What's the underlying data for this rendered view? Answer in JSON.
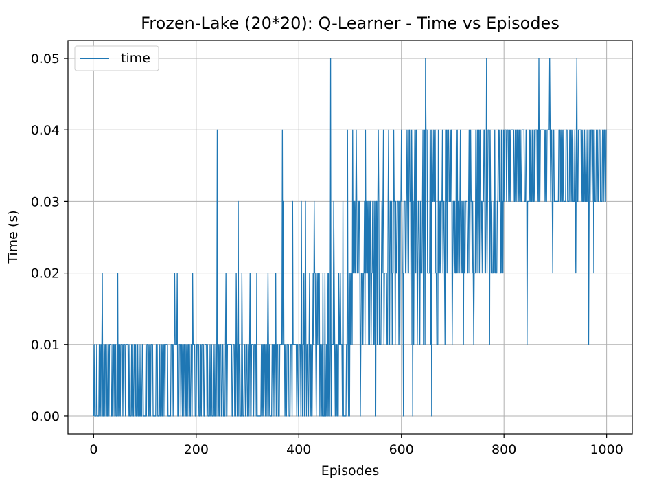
{
  "chart_data": {
    "type": "line",
    "title": "Frozen-Lake (20*20): Q-Learner - Time vs Episodes",
    "xlabel": "Episodes",
    "ylabel": "Time (s)",
    "xlim": [
      -50,
      1050
    ],
    "ylim": [
      -0.0025,
      0.0525
    ],
    "x_ticks": [
      0,
      200,
      400,
      600,
      800,
      1000
    ],
    "x_tick_labels": [
      "0",
      "200",
      "400",
      "600",
      "800",
      "1000"
    ],
    "y_ticks": [
      0.0,
      0.01,
      0.02,
      0.03,
      0.04,
      0.05
    ],
    "y_tick_labels": [
      "0.00",
      "0.01",
      "0.02",
      "0.03",
      "0.04",
      "0.05"
    ],
    "grid": true,
    "legend": {
      "position": "top-left",
      "entries": [
        "time"
      ]
    },
    "series": [
      {
        "name": "time",
        "color": "#1f77b4",
        "x_start": 0,
        "x_step": 1,
        "values_note_free": true,
        "segments": [
          {
            "from": 0,
            "to": 150,
            "low": 0.0,
            "high": 0.01,
            "p_high": 0.5,
            "spikes": [
              {
                "x": 17,
                "y": 0.02
              },
              {
                "x": 47,
                "y": 0.02
              }
            ]
          },
          {
            "from": 150,
            "to": 300,
            "low": 0.0,
            "high": 0.01,
            "p_high": 0.55,
            "spikes": [
              {
                "x": 158,
                "y": 0.02
              },
              {
                "x": 163,
                "y": 0.02
              },
              {
                "x": 193,
                "y": 0.02
              },
              {
                "x": 241,
                "y": 0.04
              },
              {
                "x": 258,
                "y": 0.02
              },
              {
                "x": 278,
                "y": 0.02
              },
              {
                "x": 282,
                "y": 0.03
              },
              {
                "x": 289,
                "y": 0.02
              }
            ]
          },
          {
            "from": 300,
            "to": 420,
            "low": 0.0,
            "high": 0.01,
            "p_high": 0.55,
            "spikes": [
              {
                "x": 305,
                "y": 0.02
              },
              {
                "x": 318,
                "y": 0.02
              },
              {
                "x": 340,
                "y": 0.02
              },
              {
                "x": 355,
                "y": 0.02
              },
              {
                "x": 368,
                "y": 0.04
              },
              {
                "x": 370,
                "y": 0.03
              },
              {
                "x": 388,
                "y": 0.03
              },
              {
                "x": 405,
                "y": 0.03
              },
              {
                "x": 410,
                "y": 0.02
              },
              {
                "x": 413,
                "y": 0.03
              }
            ]
          },
          {
            "from": 420,
            "to": 500,
            "low": 0.0,
            "high": 0.02,
            "p_high": 0.5,
            "spikes": [
              {
                "x": 430,
                "y": 0.03
              },
              {
                "x": 462,
                "y": 0.05
              },
              {
                "x": 468,
                "y": 0.03
              },
              {
                "x": 486,
                "y": 0.03
              },
              {
                "x": 495,
                "y": 0.04
              }
            ]
          },
          {
            "from": 500,
            "to": 600,
            "low": 0.01,
            "high": 0.03,
            "p_high": 0.5,
            "spikes": [
              {
                "x": 505,
                "y": 0.04
              },
              {
                "x": 512,
                "y": 0.04
              },
              {
                "x": 520,
                "y": 0.04
              },
              {
                "x": 530,
                "y": 0.04
              },
              {
                "x": 555,
                "y": 0.04
              },
              {
                "x": 565,
                "y": 0.04
              },
              {
                "x": 575,
                "y": 0.04
              },
              {
                "x": 585,
                "y": 0.04
              },
              {
                "x": 550,
                "y": 0.0
              },
              {
                "x": 520,
                "y": 0.0
              }
            ]
          },
          {
            "from": 600,
            "to": 700,
            "low": 0.01,
            "high": 0.04,
            "p_high": 0.5,
            "spikes": [
              {
                "x": 604,
                "y": 0.0
              },
              {
                "x": 622,
                "y": 0.0
              },
              {
                "x": 647,
                "y": 0.05
              },
              {
                "x": 659,
                "y": 0.0
              },
              {
                "x": 701,
                "y": 0.0
              }
            ]
          },
          {
            "from": 700,
            "to": 800,
            "low": 0.02,
            "high": 0.04,
            "p_high": 0.55,
            "spikes": [
              {
                "x": 766,
                "y": 0.05
              },
              {
                "x": 772,
                "y": 0.01
              },
              {
                "x": 721,
                "y": 0.01
              },
              {
                "x": 741,
                "y": 0.01
              }
            ]
          },
          {
            "from": 800,
            "to": 1001,
            "low": 0.03,
            "high": 0.04,
            "p_high": 0.55,
            "spikes": [
              {
                "x": 845,
                "y": 0.01
              },
              {
                "x": 868,
                "y": 0.05
              },
              {
                "x": 889,
                "y": 0.05
              },
              {
                "x": 942,
                "y": 0.05
              },
              {
                "x": 965,
                "y": 0.01
              },
              {
                "x": 975,
                "y": 0.01
              },
              {
                "x": 975,
                "y": 0.02
              },
              {
                "x": 895,
                "y": 0.02
              },
              {
                "x": 940,
                "y": 0.02
              }
            ]
          }
        ]
      }
    ]
  }
}
